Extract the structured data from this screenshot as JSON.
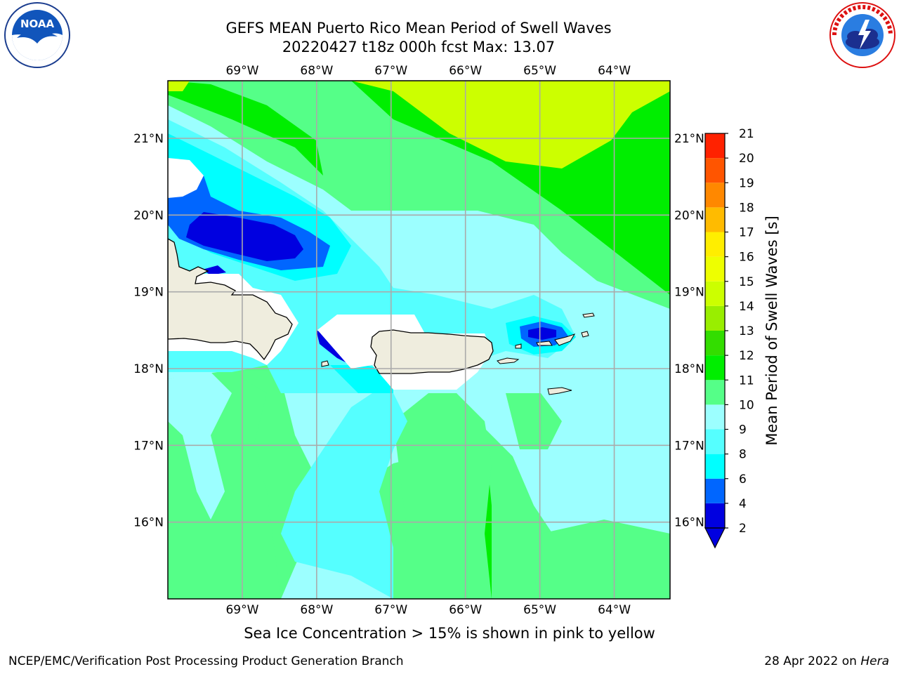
{
  "header": {
    "title_line1": "GEFS MEAN Puerto Rico Mean Period of Swell Waves",
    "title_line2": "20220427 t18z 000h fcst   Max: 13.07"
  },
  "logos": {
    "left": {
      "icon": "noaa-logo-icon",
      "text": "NOAA"
    },
    "right": {
      "icon": "national-weather-service-logo-icon"
    }
  },
  "map": {
    "lon_labels": [
      "69°W",
      "68°W",
      "67°W",
      "66°W",
      "65°W",
      "64°W"
    ],
    "lat_labels": [
      "21°N",
      "20°N",
      "19°N",
      "18°N",
      "17°N",
      "16°N"
    ],
    "lon_values": [
      -69,
      -68,
      -67,
      -66,
      -65,
      -64
    ],
    "lat_values": [
      21,
      20,
      19,
      18,
      17,
      16
    ],
    "extent": {
      "lon_min": -70,
      "lon_max": -63.25,
      "lat_min": 15,
      "lat_max": 21.75
    },
    "gridlines": true,
    "land_color": "#efedde",
    "no_data_color": "#ffffff"
  },
  "colorbar": {
    "label": "Mean Period of Swell Waves [s]",
    "ticks": [
      "21",
      "20",
      "19",
      "18",
      "17",
      "16",
      "15",
      "14",
      "13",
      "12",
      "11",
      "10",
      "9",
      "8",
      "6",
      "4",
      "2"
    ],
    "levels": [
      2,
      4,
      6,
      8,
      9,
      10,
      11,
      12,
      13,
      14,
      15,
      16,
      17,
      18,
      19,
      20,
      21
    ],
    "colors": [
      "#0000e0",
      "#0066ff",
      "#00ffff",
      "#55ffff",
      "#9cffff",
      "#55ff88",
      "#00ee00",
      "#33dd00",
      "#99ee00",
      "#ccff00",
      "#eeff00",
      "#ffee00",
      "#ffbb00",
      "#ff8800",
      "#ff5500",
      "#ff2200"
    ],
    "extend": "min",
    "extend_color": "#0000e0"
  },
  "subtitle": "Sea Ice Concentration > 15% is shown in pink to yellow",
  "footer": {
    "left": "NCEP/EMC/Verification Post Processing Product Generation Branch",
    "right_prefix": "28 Apr 2022 on ",
    "right_italic": "Hera"
  }
}
